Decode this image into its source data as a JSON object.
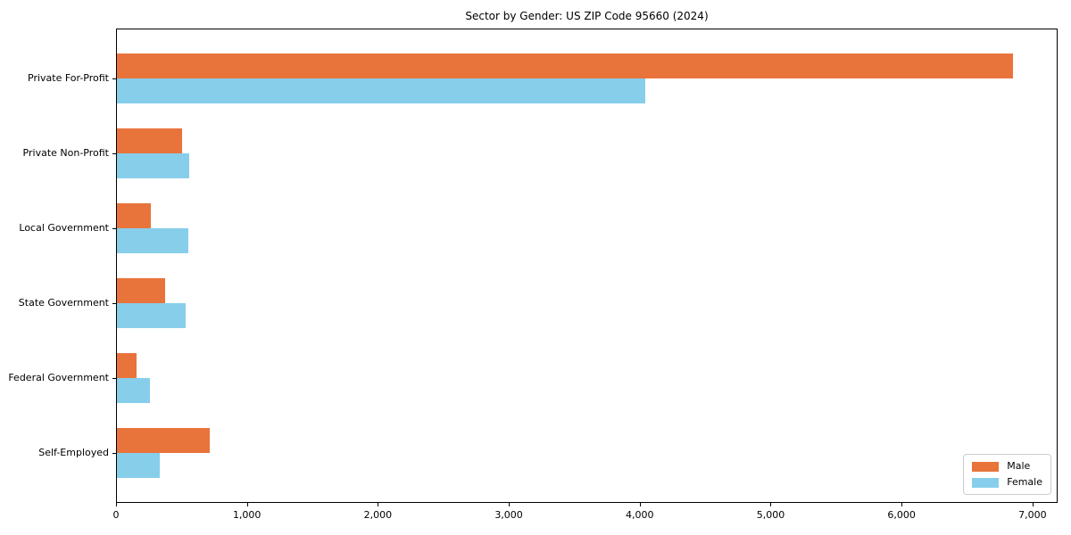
{
  "chart_data": {
    "type": "bar",
    "orientation": "horizontal",
    "title": "Sector by Gender: US ZIP Code 95660 (2024)",
    "categories": [
      "Private For-Profit",
      "Private Non-Profit",
      "Local Government",
      "State Government",
      "Federal Government",
      "Self-Employed"
    ],
    "series": [
      {
        "name": "Male",
        "color": "#e8743c",
        "values": [
          6850,
          505,
          265,
          375,
          155,
          715
        ]
      },
      {
        "name": "Female",
        "color": "#87ceeb",
        "values": [
          4040,
          560,
          550,
          530,
          260,
          335
        ]
      }
    ],
    "xlabel": "",
    "ylabel": "",
    "xlim": [
      0,
      7192
    ],
    "x_ticks": [
      {
        "value": 0,
        "label": "0"
      },
      {
        "value": 1000,
        "label": "1,000"
      },
      {
        "value": 2000,
        "label": "2,000"
      },
      {
        "value": 3000,
        "label": "3,000"
      },
      {
        "value": 4000,
        "label": "4,000"
      },
      {
        "value": 5000,
        "label": "5,000"
      },
      {
        "value": 6000,
        "label": "6,000"
      },
      {
        "value": 7000,
        "label": "7,000"
      }
    ],
    "grid": false,
    "legend_position": "lower right",
    "background_color": "#ffffff",
    "text_color": "#000000"
  }
}
